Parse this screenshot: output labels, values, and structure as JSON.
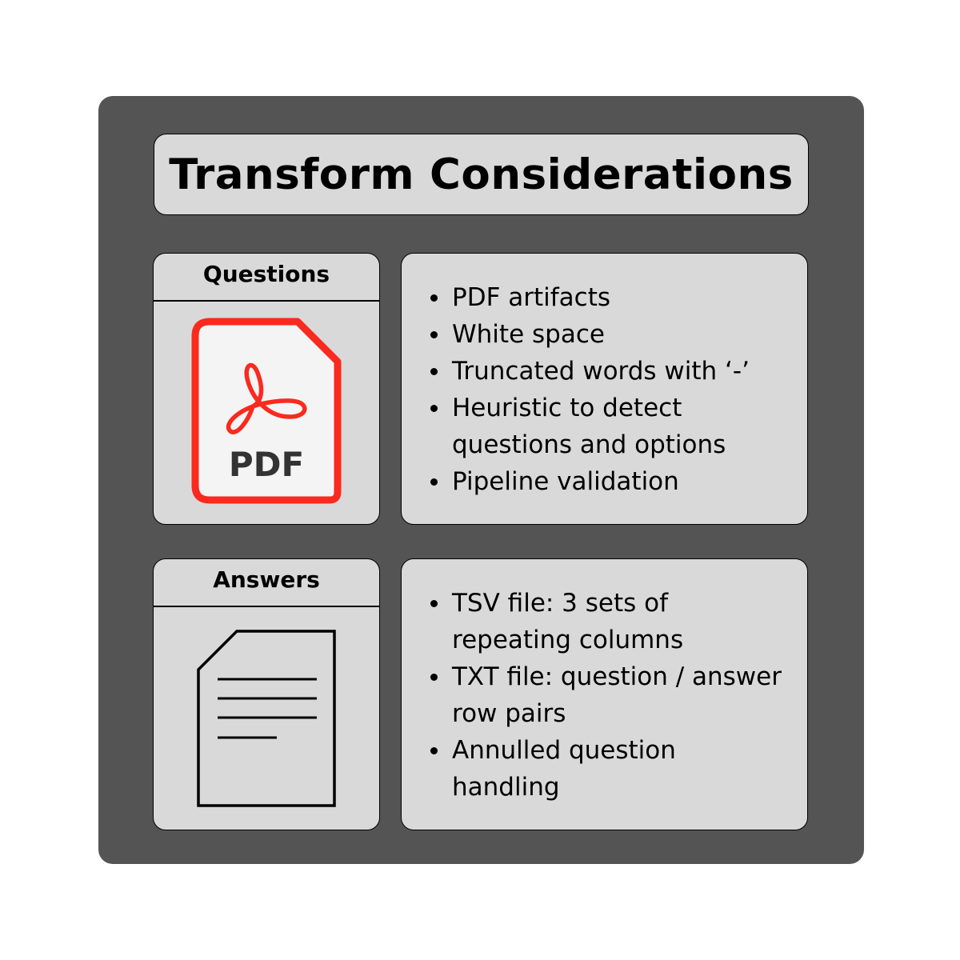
{
  "title": "Transform Considerations",
  "questions": {
    "header": "Questions",
    "icon": "pdf-file-icon",
    "icon_label": "PDF",
    "items": [
      [
        "PDF artifacts"
      ],
      [
        "White space"
      ],
      [
        "Truncated words with ‘-’"
      ],
      [
        "Heuristic to detect",
        "questions and options"
      ],
      [
        "Pipeline validation"
      ]
    ]
  },
  "answers": {
    "header": "Answers",
    "icon": "text-document-icon",
    "items": [
      [
        "TSV file: 3 sets of",
        "repeating columns"
      ],
      [
        "TXT file: question / answer",
        "row pairs"
      ],
      [
        "Annulled question",
        "handling"
      ]
    ]
  },
  "colors": {
    "frame": "#545454",
    "card": "#d9d9d9",
    "pdf_red": "#fa2a1f",
    "pdf_page": "#f4f4f4",
    "pdf_text": "#333333"
  }
}
